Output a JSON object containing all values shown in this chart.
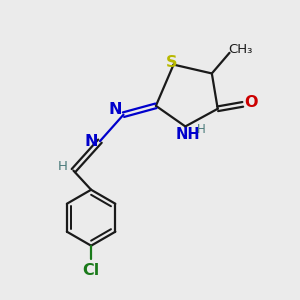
{
  "bg_color": "#ebebeb",
  "bond_color": "#1a1a1a",
  "S_color": "#b8b800",
  "N_color": "#0000cc",
  "O_color": "#cc0000",
  "Cl_color": "#1a7a1a",
  "H_color": "#4a7a7a",
  "line_width": 1.6,
  "font_size": 10.5,
  "fig_w": 3.0,
  "fig_h": 3.0,
  "dpi": 100,
  "xlim": [
    0,
    10
  ],
  "ylim": [
    0,
    10
  ]
}
